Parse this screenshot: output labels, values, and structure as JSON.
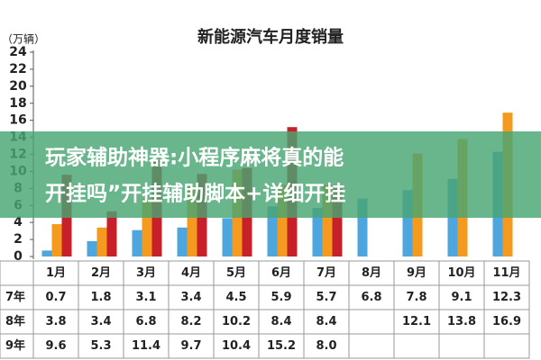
{
  "chart_data": {
    "type": "bar",
    "title": "新能源汽车月度销量",
    "y_label": "（万辆）",
    "categories": [
      "1月",
      "2月",
      "3月",
      "4月",
      "5月",
      "6月",
      "7月",
      "8月",
      "9月",
      "10月",
      "11月"
    ],
    "series": [
      {
        "name": "7年",
        "color": "#4da6de",
        "values": [
          0.7,
          1.8,
          3.1,
          3.4,
          4.5,
          5.9,
          5.7,
          6.8,
          7.8,
          9.1,
          12.3
        ]
      },
      {
        "name": "8年",
        "color": "#f39a1f",
        "values": [
          3.8,
          3.4,
          6.8,
          8.2,
          10.2,
          8.4,
          8.4,
          null,
          12.1,
          13.8,
          16.9
        ]
      },
      {
        "name": "9年",
        "color": "#c8202a",
        "values": [
          9.6,
          5.3,
          11.4,
          9.7,
          10.4,
          15.2,
          8.0,
          null,
          null,
          null,
          null
        ],
        "value_labels": [
          "9.6",
          "5.3",
          "11.4",
          "9.7",
          "10.4",
          "15.2",
          "8.0",
          null,
          null,
          null,
          null
        ]
      }
    ],
    "ylim": [
      0,
      24
    ],
    "yticks": [
      0,
      2,
      4,
      6,
      8,
      10,
      12,
      14,
      16,
      18,
      20,
      22,
      24
    ],
    "grid": false
  },
  "banner": {
    "lines": [
      "玩家辅助神器:小程序麻将真的能",
      "开挂吗”开挂辅助脚本+详细开挂"
    ]
  }
}
